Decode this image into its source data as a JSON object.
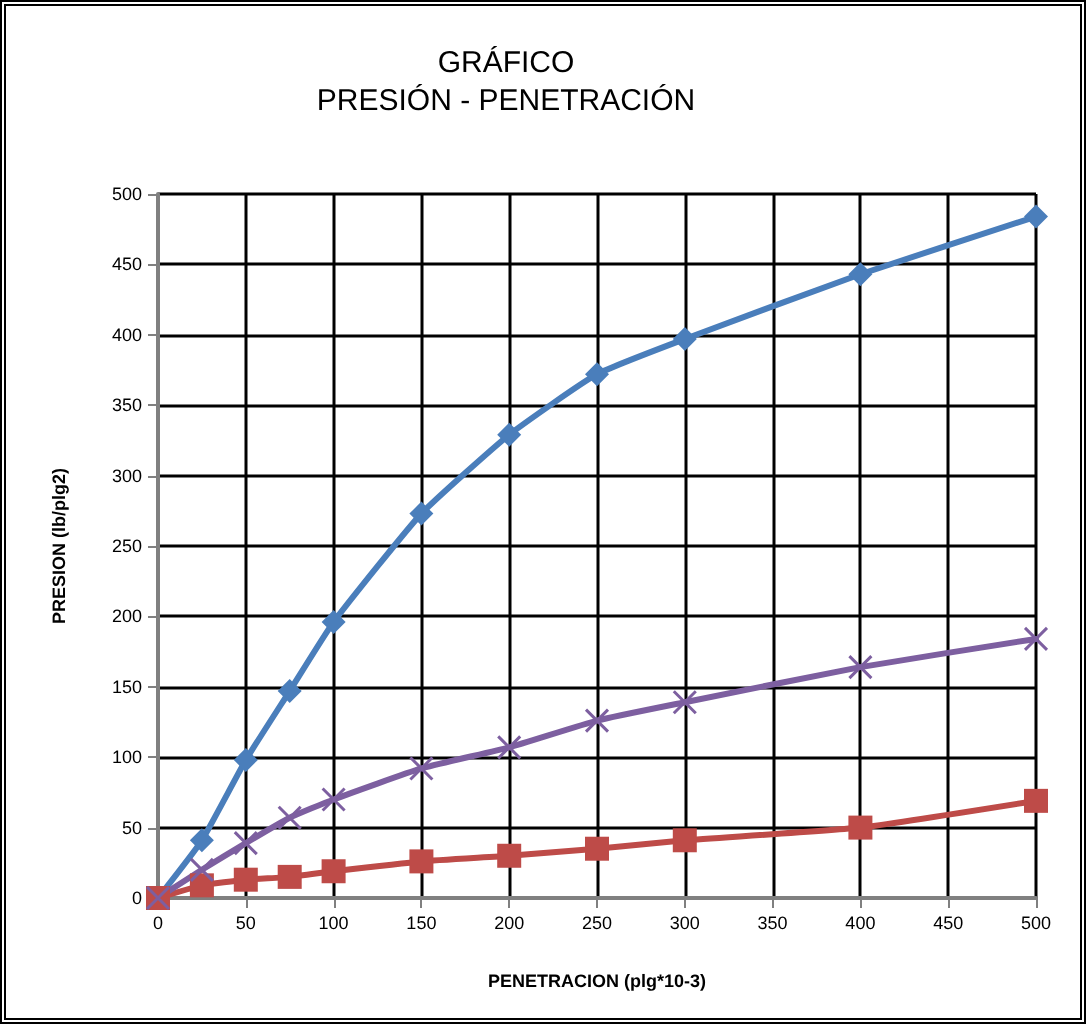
{
  "chart_data": {
    "type": "line",
    "title": "GRÁFICO",
    "subtitle": "PRESIÓN - PENETRACIÓN",
    "xlabel": "PENETRACION (plg*10-3)",
    "ylabel": "PRESION (lb/plg2)",
    "x": [
      0,
      25,
      50,
      75,
      100,
      150,
      200,
      250,
      300,
      400,
      500
    ],
    "series": [
      {
        "color": "#4a7ebb",
        "marker": "diamond",
        "values": [
          0,
          41,
          98,
          147,
          196,
          273,
          329,
          372,
          397,
          443,
          484
        ]
      },
      {
        "color": "#be4b48",
        "marker": "square",
        "values": [
          0,
          9,
          13,
          15,
          19,
          26,
          30,
          35,
          41,
          50,
          69
        ]
      },
      {
        "color": "#7d5fa0",
        "marker": "cross",
        "values": [
          0,
          20,
          39,
          57,
          70,
          92,
          107,
          126,
          139,
          164,
          184
        ]
      }
    ],
    "xlim": [
      0,
      500
    ],
    "xticks": [
      0,
      50,
      100,
      150,
      200,
      250,
      300,
      350,
      400,
      450,
      500
    ],
    "ylim": [
      0,
      500
    ],
    "yticks": [
      0,
      50,
      100,
      150,
      200,
      250,
      300,
      350,
      400,
      450,
      500
    ],
    "grid": true
  }
}
